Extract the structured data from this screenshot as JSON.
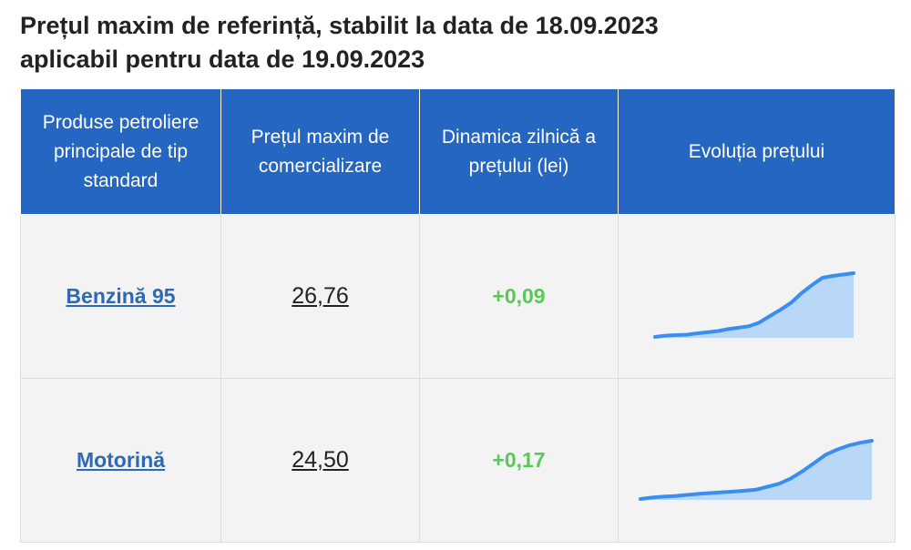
{
  "title": {
    "line1": "Prețul maxim de referință, stabilit la data de 18.09.2023",
    "line2": "aplicabil pentru data de 19.09.2023"
  },
  "table": {
    "headers": [
      "Produse petroliere principale de tip standard",
      "Prețul maxim de comercializare",
      "Dinamica zilnică a prețului (lei)",
      "Evoluția prețului"
    ],
    "rows": [
      {
        "product": "Benzină 95",
        "price": "26,76",
        "delta": "+0,09",
        "trend": [
          22.62,
          22.7,
          22.74,
          22.76,
          22.85,
          22.92,
          23.0,
          23.13,
          23.22,
          23.32,
          23.56,
          23.98,
          24.38,
          24.83,
          25.45,
          25.98,
          26.46,
          26.58,
          26.67,
          26.76
        ]
      },
      {
        "product": "Motorină",
        "price": "24,50",
        "delta": "+0,17",
        "trend": [
          19.55,
          19.67,
          19.75,
          19.8,
          19.9,
          19.98,
          20.05,
          20.12,
          20.18,
          20.25,
          20.35,
          20.6,
          20.85,
          21.3,
          21.9,
          22.6,
          23.3,
          23.75,
          24.1,
          24.33,
          24.5
        ]
      }
    ]
  },
  "colors": {
    "header_bg": "#2566c2",
    "link": "#2e6ab3",
    "delta_positive": "#5bc75b",
    "spark_line": "#3a8ef0",
    "spark_fill": "#b9d7f7"
  }
}
